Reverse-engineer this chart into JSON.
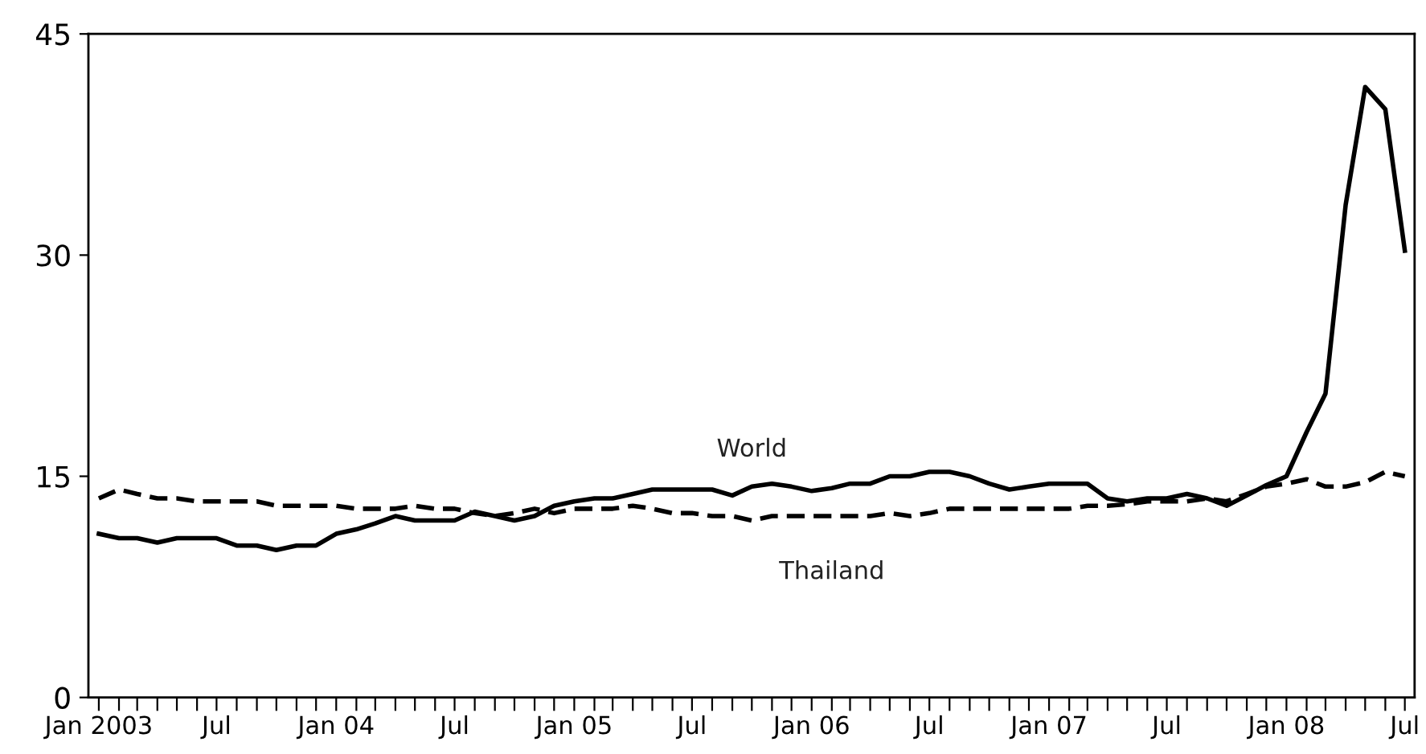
{
  "chart_data": {
    "type": "line",
    "x": [
      "2003-01",
      "2003-02",
      "2003-03",
      "2003-04",
      "2003-05",
      "2003-06",
      "2003-07",
      "2003-08",
      "2003-09",
      "2003-10",
      "2003-11",
      "2003-12",
      "2004-01",
      "2004-02",
      "2004-03",
      "2004-04",
      "2004-05",
      "2004-06",
      "2004-07",
      "2004-08",
      "2004-09",
      "2004-10",
      "2004-11",
      "2004-12",
      "2005-01",
      "2005-02",
      "2005-03",
      "2005-04",
      "2005-05",
      "2005-06",
      "2005-07",
      "2005-08",
      "2005-09",
      "2005-10",
      "2005-11",
      "2005-12",
      "2006-01",
      "2006-02",
      "2006-03",
      "2006-04",
      "2006-05",
      "2006-06",
      "2006-07",
      "2006-08",
      "2006-09",
      "2006-10",
      "2006-11",
      "2006-12",
      "2007-01",
      "2007-02",
      "2007-03",
      "2007-04",
      "2007-05",
      "2007-06",
      "2007-07",
      "2007-08",
      "2007-09",
      "2007-10",
      "2007-11",
      "2007-12",
      "2008-01",
      "2008-02",
      "2008-03",
      "2008-04",
      "2008-05",
      "2008-06",
      "2008-07"
    ],
    "series": [
      {
        "name": "World",
        "color": "#000000",
        "line_style": "solid",
        "values": [
          11.1,
          10.8,
          10.8,
          10.5,
          10.8,
          10.8,
          10.8,
          10.3,
          10.3,
          10.0,
          10.3,
          10.3,
          11.1,
          11.4,
          11.8,
          12.3,
          12.0,
          12.0,
          12.0,
          12.6,
          12.3,
          12.0,
          12.3,
          13.0,
          13.3,
          13.5,
          13.5,
          13.8,
          14.1,
          14.1,
          14.1,
          14.1,
          13.7,
          14.3,
          14.5,
          14.3,
          14.0,
          14.2,
          14.5,
          14.5,
          15.0,
          15.0,
          15.3,
          15.3,
          15.0,
          14.5,
          14.1,
          14.3,
          14.5,
          14.5,
          14.5,
          13.5,
          13.3,
          13.5,
          13.5,
          13.8,
          13.5,
          13.0,
          13.7,
          14.4,
          15.0,
          18.0,
          20.6,
          33.4,
          41.4,
          39.9,
          30.3
        ]
      },
      {
        "name": "Thailand",
        "color": "#000000",
        "line_style": "dashed",
        "values": [
          13.5,
          14.1,
          13.8,
          13.5,
          13.5,
          13.3,
          13.3,
          13.3,
          13.3,
          13.0,
          13.0,
          13.0,
          13.0,
          12.8,
          12.8,
          12.8,
          13.0,
          12.8,
          12.8,
          12.5,
          12.3,
          12.5,
          12.8,
          12.5,
          12.8,
          12.8,
          12.8,
          13.0,
          12.8,
          12.5,
          12.5,
          12.3,
          12.3,
          12.0,
          12.3,
          12.3,
          12.3,
          12.3,
          12.3,
          12.3,
          12.5,
          12.3,
          12.5,
          12.8,
          12.8,
          12.8,
          12.8,
          12.8,
          12.8,
          12.8,
          13.0,
          13.0,
          13.1,
          13.3,
          13.3,
          13.3,
          13.5,
          13.3,
          13.8,
          14.3,
          14.5,
          14.8,
          14.3,
          14.3,
          14.6,
          15.3,
          15.0
        ]
      }
    ],
    "ylim": [
      0,
      45
    ],
    "yticks": [
      0,
      15,
      30,
      45
    ],
    "xlim": [
      "2002-12-16",
      "2008-07-16"
    ],
    "xticks": [
      {
        "value": "2003-01",
        "label": "Jan 2003"
      },
      {
        "value": "2003-02",
        "label": null
      },
      {
        "value": "2003-03",
        "label": null
      },
      {
        "value": "2003-04",
        "label": null
      },
      {
        "value": "2003-05",
        "label": null
      },
      {
        "value": "2003-06",
        "label": null
      },
      {
        "value": "2003-07",
        "label": "Jul"
      },
      {
        "value": "2003-08",
        "label": null
      },
      {
        "value": "2003-09",
        "label": null
      },
      {
        "value": "2003-10",
        "label": null
      },
      {
        "value": "2003-11",
        "label": null
      },
      {
        "value": "2003-12",
        "label": null
      },
      {
        "value": "2004-01",
        "label": "Jan 04"
      },
      {
        "value": "2004-02",
        "label": null
      },
      {
        "value": "2004-03",
        "label": null
      },
      {
        "value": "2004-04",
        "label": null
      },
      {
        "value": "2004-05",
        "label": null
      },
      {
        "value": "2004-06",
        "label": null
      },
      {
        "value": "2004-07",
        "label": "Jul"
      },
      {
        "value": "2004-08",
        "label": null
      },
      {
        "value": "2004-09",
        "label": null
      },
      {
        "value": "2004-10",
        "label": null
      },
      {
        "value": "2004-11",
        "label": null
      },
      {
        "value": "2004-12",
        "label": null
      },
      {
        "value": "2005-01",
        "label": "Jan 05"
      },
      {
        "value": "2005-02",
        "label": null
      },
      {
        "value": "2005-03",
        "label": null
      },
      {
        "value": "2005-04",
        "label": null
      },
      {
        "value": "2005-05",
        "label": null
      },
      {
        "value": "2005-06",
        "label": null
      },
      {
        "value": "2005-07",
        "label": "Jul"
      },
      {
        "value": "2005-08",
        "label": null
      },
      {
        "value": "2005-09",
        "label": null
      },
      {
        "value": "2005-10",
        "label": null
      },
      {
        "value": "2005-11",
        "label": null
      },
      {
        "value": "2005-12",
        "label": null
      },
      {
        "value": "2006-01",
        "label": "Jan 06"
      },
      {
        "value": "2006-02",
        "label": null
      },
      {
        "value": "2006-03",
        "label": null
      },
      {
        "value": "2006-04",
        "label": null
      },
      {
        "value": "2006-05",
        "label": null
      },
      {
        "value": "2006-06",
        "label": null
      },
      {
        "value": "2006-07",
        "label": "Jul"
      },
      {
        "value": "2006-08",
        "label": null
      },
      {
        "value": "2006-09",
        "label": null
      },
      {
        "value": "2006-10",
        "label": null
      },
      {
        "value": "2006-11",
        "label": null
      },
      {
        "value": "2006-12",
        "label": null
      },
      {
        "value": "2007-01",
        "label": "Jan 07"
      },
      {
        "value": "2007-02",
        "label": null
      },
      {
        "value": "2007-03",
        "label": null
      },
      {
        "value": "2007-04",
        "label": null
      },
      {
        "value": "2007-05",
        "label": null
      },
      {
        "value": "2007-06",
        "label": null
      },
      {
        "value": "2007-07",
        "label": "Jul"
      },
      {
        "value": "2007-08",
        "label": null
      },
      {
        "value": "2007-09",
        "label": null
      },
      {
        "value": "2007-10",
        "label": null
      },
      {
        "value": "2007-11",
        "label": null
      },
      {
        "value": "2007-12",
        "label": null
      },
      {
        "value": "2008-01",
        "label": "Jan 08"
      },
      {
        "value": "2008-02",
        "label": null
      },
      {
        "value": "2008-03",
        "label": null
      },
      {
        "value": "2008-04",
        "label": null
      },
      {
        "value": "2008-05",
        "label": null
      },
      {
        "value": "2008-06",
        "label": null
      },
      {
        "value": "2008-07",
        "label": "Jul"
      }
    ],
    "grid": false,
    "legend": false,
    "marker": "none"
  }
}
